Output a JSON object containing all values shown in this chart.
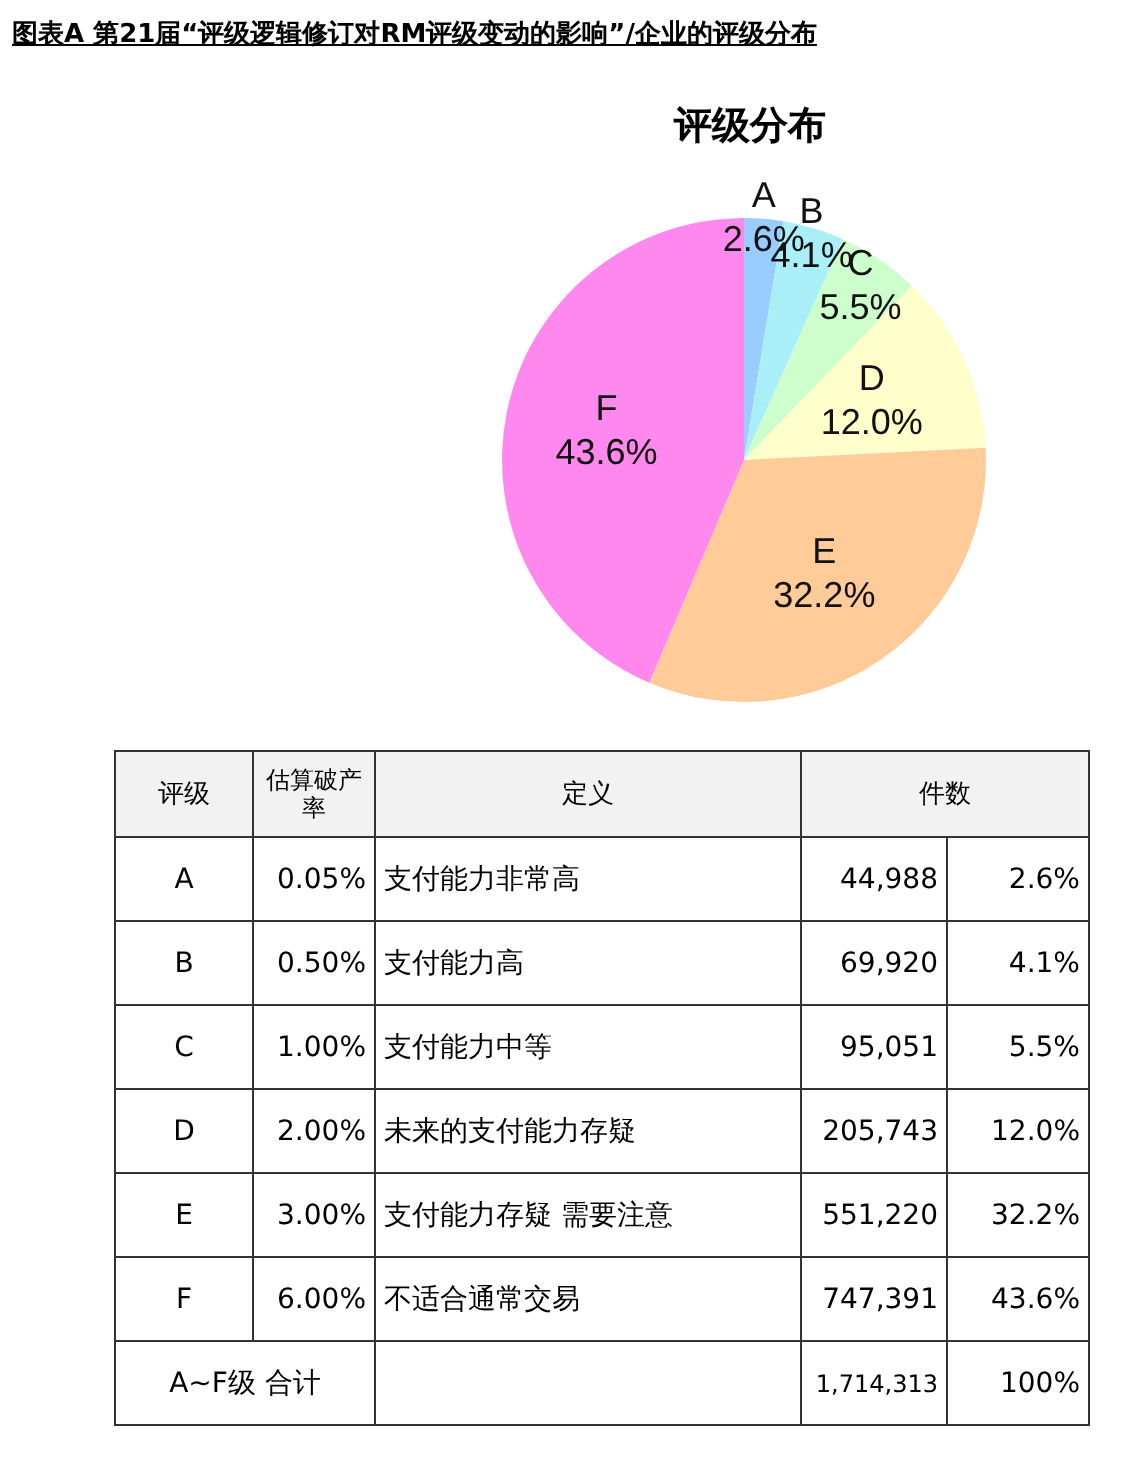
{
  "chart_data": [
    {
      "type": "pie",
      "title": "评级分布",
      "annotations": [
        "图表A 第21届“评级逻辑修订对RM评级变动的影响”/企业的评级分布"
      ],
      "categories": [
        "A",
        "B",
        "C",
        "D",
        "E",
        "F"
      ],
      "values": [
        2.6,
        4.1,
        5.5,
        12.0,
        32.2,
        43.6
      ],
      "colors": [
        "#99ccff",
        "#aaeef8",
        "#ccffcc",
        "#ffffcc",
        "#ffcc99",
        "#ff88ee"
      ],
      "value_labels": [
        "2.6%",
        "4.1%",
        "5.5%",
        "12.0%",
        "32.2%",
        "43.6%"
      ],
      "legend": false
    },
    {
      "type": "other",
      "ylabel": "评级",
      "categories": [
        "A",
        "B",
        "C",
        "D",
        "E",
        "F",
        "A~F级 合计"
      ],
      "annotations": [
        "定义",
        "支付能力非常高",
        "支付能力高",
        "支付能力中等",
        "未来的支付能力存疑",
        "支付能力存疑 需要注意",
        "不适合通常交易"
      ],
      "series": [
        {
          "name": "估算破产率",
          "values": [
            0.05,
            0.5,
            1.0,
            2.0,
            3.0,
            6.0,
            null
          ],
          "value_labels": [
            "0.05%",
            "0.50%",
            "1.00%",
            "2.00%",
            "3.00%",
            "6.00%",
            null
          ]
        },
        {
          "name": "件数",
          "values": [
            44988,
            69920,
            95051,
            205743,
            551220,
            747391,
            1714313
          ],
          "value_labels": [
            "44,988",
            "69,920",
            "95,051",
            "205,743",
            "551,220",
            "747,391",
            "1,714,313"
          ]
        },
        {
          "values": [
            2.6,
            4.1,
            5.5,
            12.0,
            32.2,
            43.6,
            100
          ],
          "value_labels": [
            "2.6%",
            "4.1%",
            "5.5%",
            "12.0%",
            "32.2%",
            "43.6%",
            "100%"
          ]
        }
      ]
    }
  ]
}
